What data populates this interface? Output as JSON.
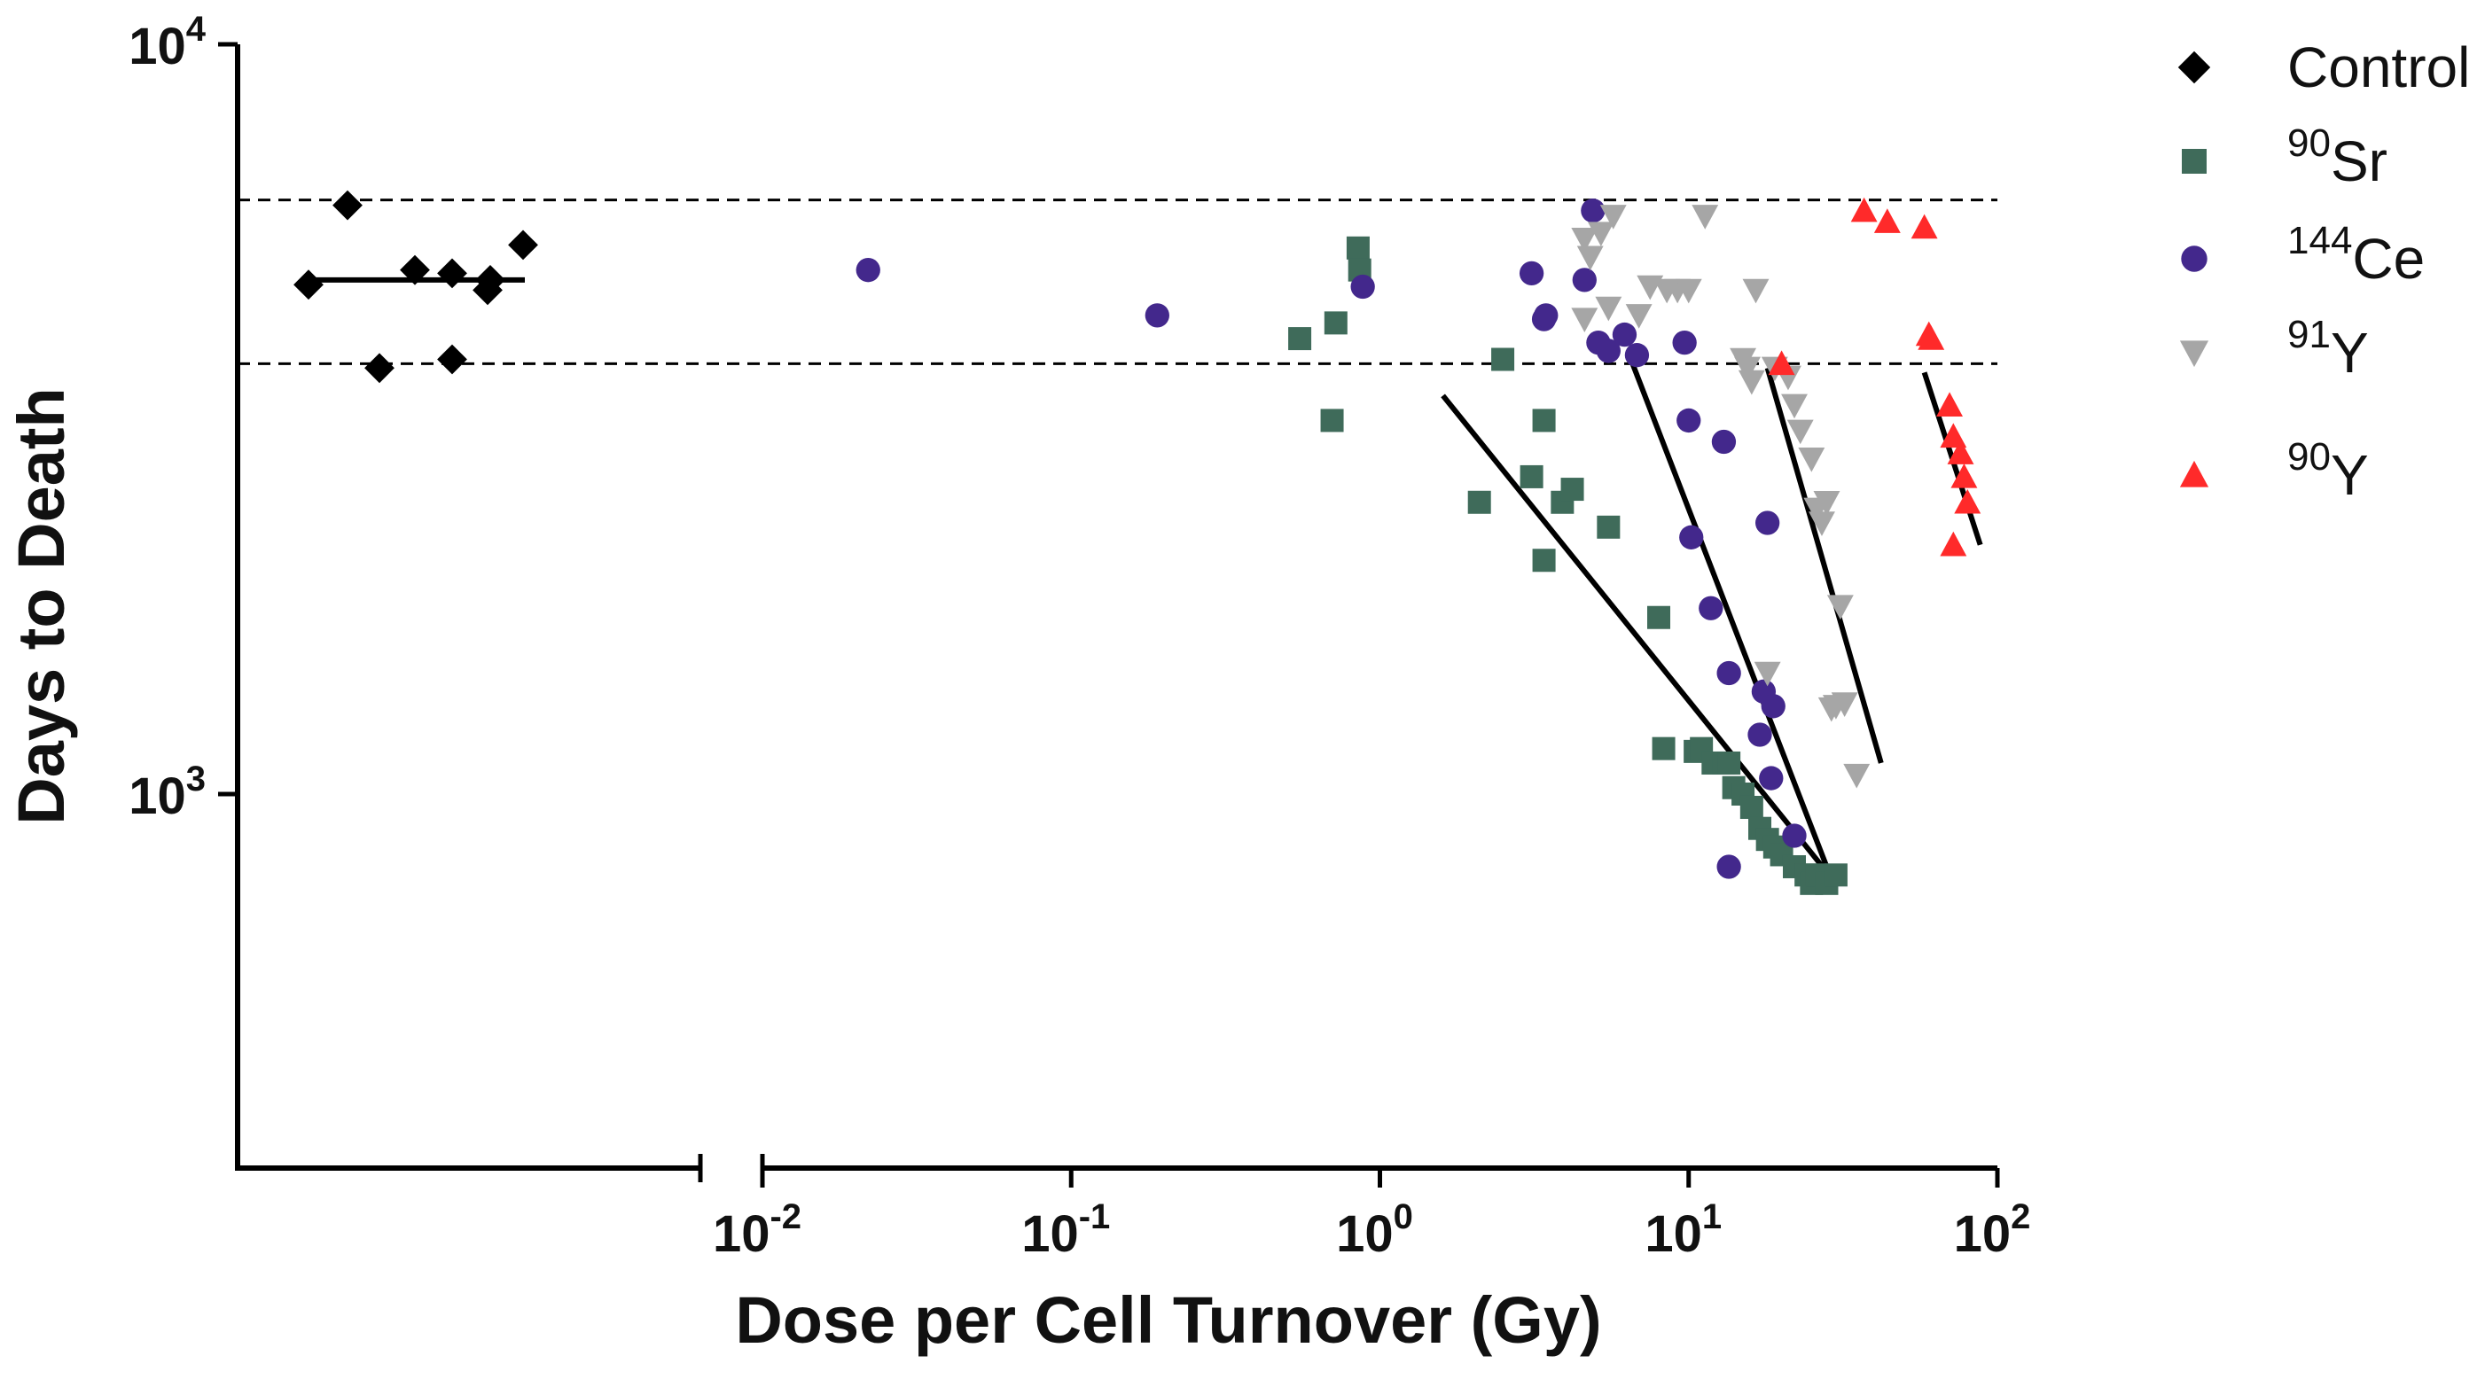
{
  "chart_data": {
    "type": "scatter",
    "title": "",
    "xlabel": "Dose per Cell Turnover (Gy)",
    "ylabel": "Days to Death",
    "xscale": "log",
    "yscale": "log",
    "xlim": [
      0.01,
      100
    ],
    "ylim": [
      320,
      10000
    ],
    "x_ticks": [
      {
        "base": "10",
        "exp": "-2",
        "value": 0.01
      },
      {
        "base": "10",
        "exp": "-1",
        "value": 0.1
      },
      {
        "base": "10",
        "exp": "0",
        "value": 1
      },
      {
        "base": "10",
        "exp": "1",
        "value": 10
      },
      {
        "base": "10",
        "exp": "2",
        "value": 100
      }
    ],
    "y_ticks": [
      {
        "base": "10",
        "exp": "4",
        "value": 10000
      },
      {
        "base": "10",
        "exp": "3",
        "value": 1000
      }
    ],
    "x_axis_break": true,
    "reference_lines": [
      {
        "style": "dashed",
        "y": 6200
      },
      {
        "style": "dashed",
        "y": 3750
      }
    ],
    "control_series": {
      "name": "Control",
      "x_position": "left of axis break (no dose)",
      "values": [
        6100,
        4780,
        5000,
        3700,
        4950,
        4700,
        3800,
        4850,
        5400
      ],
      "mean": 4850
    },
    "legend_position": "top-right",
    "legend": [
      {
        "prefix": "",
        "label": "Control",
        "marker": "diamond",
        "color": "#000000"
      },
      {
        "prefix": "90",
        "label": "Sr",
        "marker": "square",
        "color": "#3f6b5a"
      },
      {
        "prefix": "144",
        "label": "Ce",
        "marker": "circle",
        "color": "#43288c"
      },
      {
        "prefix": "91",
        "label": "Y",
        "marker": "triangle-down",
        "color": "#a6a6a6"
      },
      {
        "prefix": "90",
        "label": "Y",
        "marker": "triangle-up",
        "color": "#ff2a2a"
      }
    ],
    "series": [
      {
        "name": "90Sr",
        "marker": "square",
        "color": "#3f6b5a",
        "points": [
          [
            0.55,
            4050
          ],
          [
            0.72,
            4250
          ],
          [
            0.7,
            3150
          ],
          [
            0.85,
            5350
          ],
          [
            0.86,
            5000
          ],
          [
            2.5,
            3800
          ],
          [
            3.4,
            3150
          ],
          [
            3.1,
            2650
          ],
          [
            3.4,
            2050
          ],
          [
            2.1,
            2450
          ],
          [
            3.9,
            2450
          ],
          [
            4.2,
            2550
          ],
          [
            5.5,
            2270
          ],
          [
            8,
            1720
          ],
          [
            8.3,
            1150
          ],
          [
            10.5,
            1140
          ],
          [
            11,
            1150
          ],
          [
            12,
            1100
          ],
          [
            13,
            1100
          ],
          [
            13.5,
            1100
          ],
          [
            14,
            1020
          ],
          [
            15,
            1000
          ],
          [
            16,
            960
          ],
          [
            17,
            900
          ],
          [
            18,
            870
          ],
          [
            19,
            850
          ],
          [
            20,
            830
          ],
          [
            22,
            800
          ],
          [
            24,
            780
          ],
          [
            25,
            760
          ],
          [
            26,
            780
          ],
          [
            28,
            760
          ],
          [
            30,
            780
          ]
        ],
        "fit_line": [
          [
            1.6,
            3400
          ],
          [
            30,
            760
          ]
        ]
      },
      {
        "name": "144Ce",
        "marker": "circle",
        "color": "#43288c",
        "points": [
          [
            0.022,
            5000
          ],
          [
            0.19,
            4350
          ],
          [
            0.88,
            4750
          ],
          [
            3.1,
            4950
          ],
          [
            3.4,
            4300
          ],
          [
            3.45,
            4350
          ],
          [
            4.6,
            4850
          ],
          [
            4.9,
            6000
          ],
          [
            5.1,
            4000
          ],
          [
            5.5,
            3900
          ],
          [
            6.2,
            4100
          ],
          [
            6.8,
            3850
          ],
          [
            9.7,
            4000
          ],
          [
            10,
            3150
          ],
          [
            10.2,
            2200
          ],
          [
            11.8,
            1770
          ],
          [
            13,
            2950
          ],
          [
            13.5,
            1450
          ],
          [
            17,
            1200
          ],
          [
            17.5,
            1370
          ],
          [
            18,
            2300
          ],
          [
            18.5,
            1050
          ],
          [
            18.8,
            1310
          ],
          [
            22,
            880
          ],
          [
            13.5,
            800
          ]
        ],
        "fit_line": [
          [
            6.5,
            3800
          ],
          [
            28,
            800
          ]
        ]
      },
      {
        "name": "91Y",
        "marker": "triangle-down",
        "color": "#a6a6a6",
        "points": [
          [
            4.6,
            5500
          ],
          [
            4.8,
            5200
          ],
          [
            5.2,
            5600
          ],
          [
            5.7,
            5900
          ],
          [
            4.6,
            4300
          ],
          [
            5.5,
            4450
          ],
          [
            6.9,
            4350
          ],
          [
            7.5,
            4750
          ],
          [
            8.5,
            4700
          ],
          [
            9.2,
            4700
          ],
          [
            10,
            4700
          ],
          [
            11.3,
            5900
          ],
          [
            15,
            3800
          ],
          [
            15.5,
            3700
          ],
          [
            16,
            3550
          ],
          [
            16.5,
            4700
          ],
          [
            19,
            3700
          ],
          [
            21,
            3600
          ],
          [
            22,
            3300
          ],
          [
            23,
            3050
          ],
          [
            25,
            2800
          ],
          [
            26,
            2400
          ],
          [
            27,
            2300
          ],
          [
            28,
            2450
          ],
          [
            31,
            1780
          ],
          [
            18,
            1450
          ],
          [
            29,
            1300
          ],
          [
            30,
            1310
          ],
          [
            32,
            1320
          ],
          [
            35,
            1060
          ]
        ],
        "fit_line": [
          [
            18,
            3700
          ],
          [
            42,
            1100
          ]
        ]
      },
      {
        "name": "90Y",
        "marker": "triangle-up",
        "color": "#ff2a2a",
        "points": [
          [
            20,
            3750
          ],
          [
            37,
            6000
          ],
          [
            44,
            5800
          ],
          [
            58,
            5700
          ],
          [
            60,
            4100
          ],
          [
            61,
            4050
          ],
          [
            70,
            3300
          ],
          [
            72,
            3000
          ],
          [
            76,
            2850
          ],
          [
            78,
            2650
          ],
          [
            80,
            2450
          ],
          [
            72,
            2150
          ]
        ],
        "fit_line": [
          [
            58,
            3650
          ],
          [
            88,
            2150
          ]
        ]
      }
    ]
  }
}
